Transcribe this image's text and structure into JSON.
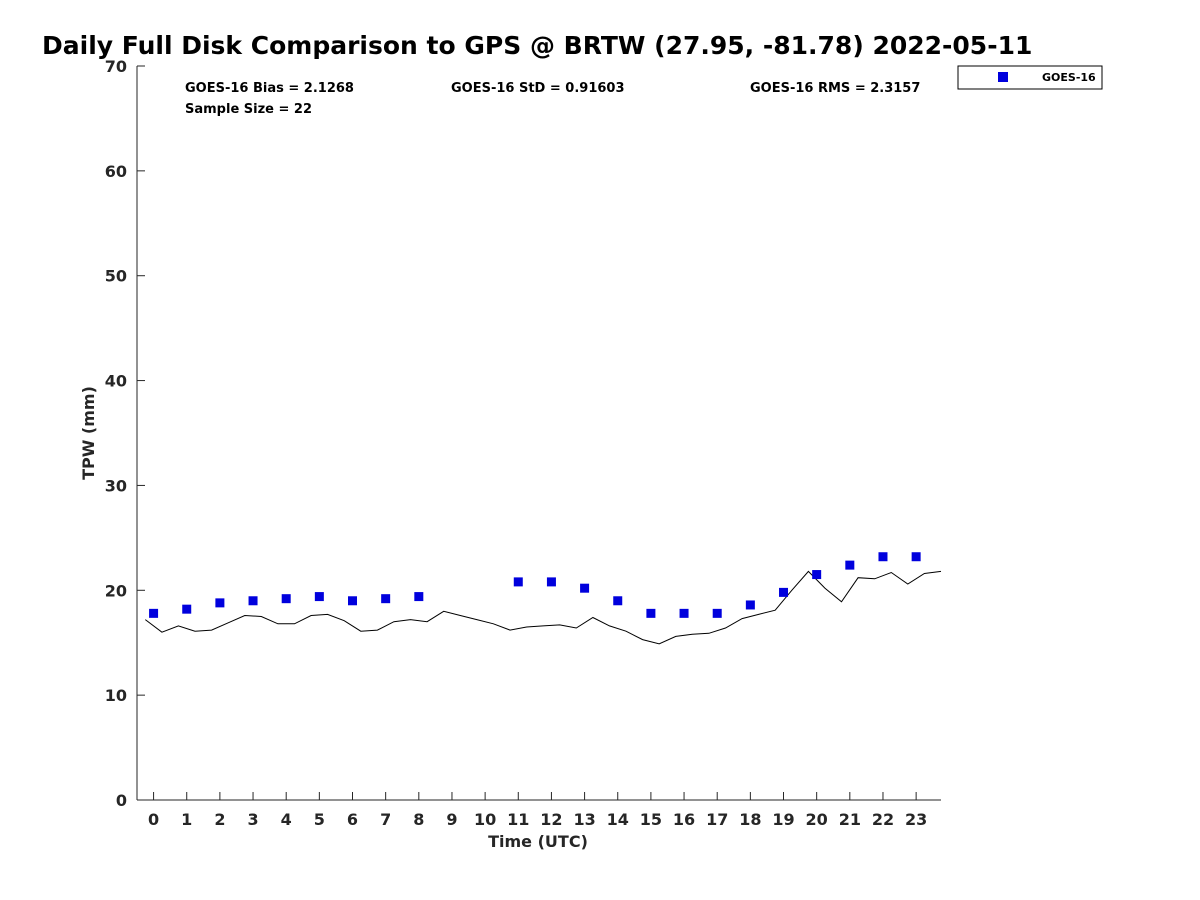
{
  "chart_data": {
    "type": "scatter",
    "title": "Daily Full Disk Comparison to GPS @ BRTW (27.95, -81.78) 2022-05-11",
    "xlabel": "Time (UTC)",
    "ylabel": "TPW (mm)",
    "xlim": [
      -0.5,
      23.75
    ],
    "ylim": [
      0,
      70
    ],
    "x_ticks": [
      0,
      1,
      2,
      3,
      4,
      5,
      6,
      7,
      8,
      9,
      10,
      11,
      12,
      13,
      14,
      15,
      16,
      17,
      18,
      19,
      20,
      21,
      22,
      23
    ],
    "x_tick_labels": [
      "0",
      "1",
      "2",
      "3",
      "4",
      "5",
      "6",
      "7",
      "8",
      "9",
      "10",
      "11",
      "12",
      "13",
      "14",
      "15",
      "16",
      "17",
      "18",
      "19",
      "20",
      "21",
      "22",
      "23"
    ],
    "y_ticks": [
      0,
      10,
      20,
      30,
      40,
      50,
      60,
      70
    ],
    "y_tick_labels": [
      "0",
      "10",
      "20",
      "30",
      "40",
      "50",
      "60",
      "70"
    ],
    "grid": false,
    "legend_position": "outside-top-right",
    "stats": {
      "bias": "GOES-16 Bias = 2.1268",
      "std": "GOES-16 StD = 0.91603",
      "rms": "GOES-16 RMS = 2.3157",
      "sample_size": "Sample Size = 22"
    },
    "series": [
      {
        "name": "GOES-16",
        "type": "scatter",
        "marker": "square",
        "color": "#0000dd",
        "points": [
          [
            0,
            17.8
          ],
          [
            1,
            18.2
          ],
          [
            2,
            18.8
          ],
          [
            3,
            19.0
          ],
          [
            4,
            19.2
          ],
          [
            5,
            19.4
          ],
          [
            6,
            19.0
          ],
          [
            7,
            19.2
          ],
          [
            8,
            19.4
          ],
          [
            11,
            20.8
          ],
          [
            12,
            20.8
          ],
          [
            13,
            20.2
          ],
          [
            14,
            19.0
          ],
          [
            15,
            17.8
          ],
          [
            16,
            17.8
          ],
          [
            17,
            17.8
          ],
          [
            18,
            18.6
          ],
          [
            19,
            19.8
          ],
          [
            20,
            21.5
          ],
          [
            21,
            22.4
          ],
          [
            22,
            23.2
          ],
          [
            23,
            23.2
          ]
        ]
      },
      {
        "type": "line",
        "color": "#000000",
        "points": [
          [
            -0.25,
            17.2
          ],
          [
            0.25,
            16.0
          ],
          [
            0.75,
            16.6
          ],
          [
            1.25,
            16.1
          ],
          [
            1.75,
            16.2
          ],
          [
            2.25,
            16.9
          ],
          [
            2.75,
            17.6
          ],
          [
            3.25,
            17.5
          ],
          [
            3.75,
            16.8
          ],
          [
            4.25,
            16.8
          ],
          [
            4.75,
            17.6
          ],
          [
            5.25,
            17.7
          ],
          [
            5.75,
            17.1
          ],
          [
            6.25,
            16.1
          ],
          [
            6.75,
            16.2
          ],
          [
            7.25,
            17.0
          ],
          [
            7.75,
            17.2
          ],
          [
            8.25,
            17.0
          ],
          [
            8.75,
            18.0
          ],
          [
            9.25,
            17.6
          ],
          [
            9.75,
            17.2
          ],
          [
            10.25,
            16.8
          ],
          [
            10.75,
            16.2
          ],
          [
            11.25,
            16.5
          ],
          [
            11.75,
            16.6
          ],
          [
            12.25,
            16.7
          ],
          [
            12.75,
            16.4
          ],
          [
            13.25,
            17.4
          ],
          [
            13.75,
            16.6
          ],
          [
            14.25,
            16.1
          ],
          [
            14.75,
            15.3
          ],
          [
            15.25,
            14.9
          ],
          [
            15.75,
            15.6
          ],
          [
            16.25,
            15.8
          ],
          [
            16.75,
            15.9
          ],
          [
            17.25,
            16.4
          ],
          [
            17.75,
            17.3
          ],
          [
            18.25,
            17.7
          ],
          [
            18.75,
            18.1
          ],
          [
            19.25,
            20.0
          ],
          [
            19.75,
            21.8
          ],
          [
            20.25,
            20.2
          ],
          [
            20.75,
            18.9
          ],
          [
            21.25,
            21.2
          ],
          [
            21.75,
            21.1
          ],
          [
            22.25,
            21.7
          ],
          [
            22.75,
            20.6
          ],
          [
            23.25,
            21.6
          ],
          [
            23.75,
            21.8
          ]
        ]
      }
    ]
  }
}
